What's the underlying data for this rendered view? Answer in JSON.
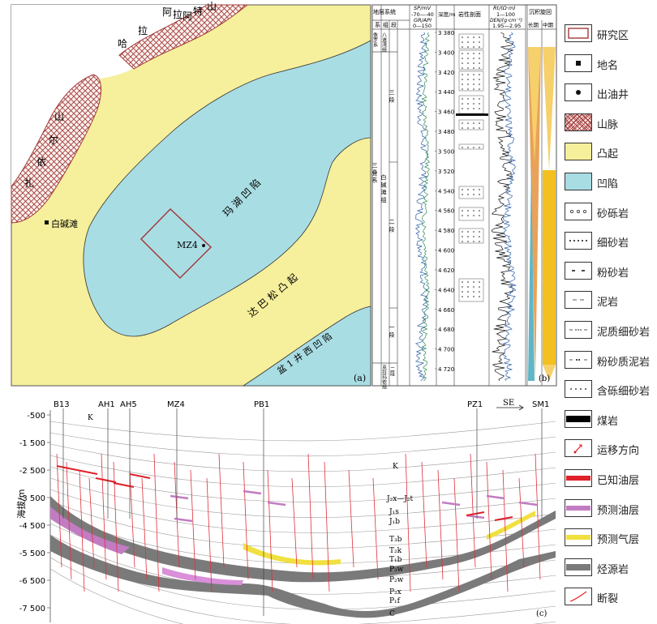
{
  "panel_a": {
    "tag": "(a)",
    "places": {
      "altai_chars": [
        "阿",
        "拉",
        "特",
        "山"
      ],
      "hala_chars": [
        "哈",
        "拉"
      ],
      "shan_chars": [
        "山",
        "尔",
        "依",
        "扎"
      ],
      "baijiantan": "白碱滩",
      "mahu_sag": "玛 湖 凹 陷",
      "dabasong_uplift": "达 巴 松 凸 起",
      "pen1_west_sag": "盆 1 井 西 凹 陷",
      "well": "MZ4"
    },
    "colors": {
      "uplift": "#f6ef9b",
      "sag": "#a9dde4",
      "mountain": "#a33a3a"
    }
  },
  "panel_b": {
    "tag": "(b)",
    "headers": {
      "strata_system": "地层系统",
      "xi": "系",
      "zu": "组",
      "duan": "段",
      "sp": "SP/mV",
      "sp_range": "-70—-40",
      "gr": "GR/API",
      "gr_range": "0—150",
      "depth": "深度/m",
      "lith": "岩性剖面",
      "rt": "Rt/(Ω·m)",
      "rt_range": "1—100",
      "den": "DEN/(g·cm⁻³)",
      "den_range": "1.95—2.95",
      "cycle": "沉积旋回",
      "long_term": "长期",
      "mid_term": "中期"
    },
    "system": "三 叠 系",
    "upper_formation": "白 碱 滩 组",
    "top_formation": "八道湾组",
    "top_system": "侏罗系",
    "bottom_formation": "克拉玛依组",
    "members": [
      "三 段",
      "二 段",
      "一 段",
      "二段"
    ],
    "depths": [
      "3 380",
      "3 400",
      "3 420",
      "3 440",
      "3 460",
      "3 480",
      "3 500",
      "3 520",
      "4 540",
      "4 560",
      "4 580",
      "4 600",
      "4 620",
      "4 640",
      "4 660",
      "4 680",
      "4 700",
      "4 720"
    ]
  },
  "panel_c": {
    "tag": "(c)",
    "wells": [
      "B13",
      "AH1",
      "AH5",
      "MZ4",
      "PB1",
      "PZ1",
      "SM1"
    ],
    "direction": "SE",
    "k_label": "K",
    "ylabel": "海拔/m",
    "yticks": [
      "-500",
      "-1 500",
      "-2 500",
      "-3 500",
      "-4 500",
      "-5 500",
      "-6 500",
      "-7 500"
    ],
    "layers": [
      "K",
      "J₂x—J₂t",
      "J₁s",
      "J₁b",
      "T₃b",
      "T₂k",
      "T₁b",
      "P₃w",
      "P₂w",
      "P₂x",
      "P₁f",
      "C"
    ]
  },
  "legend": [
    {
      "label": "研究区",
      "icon": "rect-outline-icon"
    },
    {
      "label": "地名",
      "icon": "square-dot-icon"
    },
    {
      "label": "出油井",
      "icon": "circle-dot-icon"
    },
    {
      "label": "山脉",
      "icon": "hatch-icon"
    },
    {
      "label": "凸起",
      "icon": "yellow-fill-icon"
    },
    {
      "label": "凹陷",
      "icon": "blue-fill-icon"
    },
    {
      "label": "砂砾岩",
      "icon": "pebble-icon"
    },
    {
      "label": "细砂岩",
      "icon": "fine-sand-icon"
    },
    {
      "label": "粉砂岩",
      "icon": "silt-icon"
    },
    {
      "label": "泥岩",
      "icon": "mud-icon"
    },
    {
      "label": "泥质细砂岩",
      "icon": "muddy-sand-icon"
    },
    {
      "label": "粉砂质泥岩",
      "icon": "silty-mud-icon"
    },
    {
      "label": "含砾细砂岩",
      "icon": "pebbly-sand-icon"
    },
    {
      "label": "煤岩",
      "icon": "coal-icon"
    },
    {
      "label": "运移方向",
      "icon": "migration-arrow-icon"
    },
    {
      "label": "已知油层",
      "icon": "known-oil-icon"
    },
    {
      "label": "预测油层",
      "icon": "predicted-oil-icon"
    },
    {
      "label": "预测气层",
      "icon": "predicted-gas-icon"
    },
    {
      "label": "烃源岩",
      "icon": "source-rock-icon"
    },
    {
      "label": "断裂",
      "icon": "fault-icon"
    }
  ]
}
